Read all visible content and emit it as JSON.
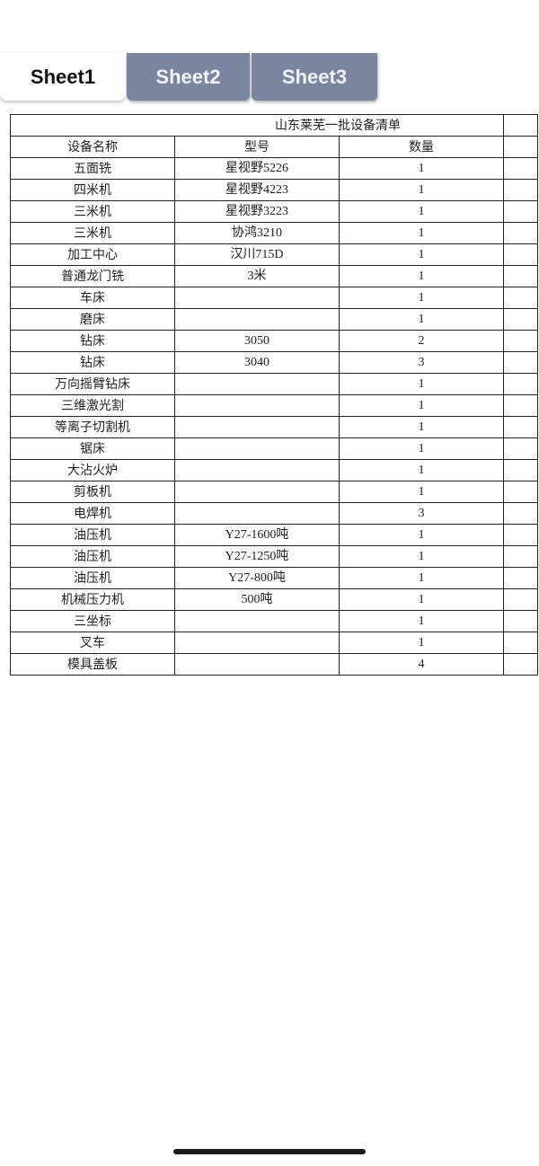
{
  "tabs": [
    {
      "label": "Sheet1",
      "active": true
    },
    {
      "label": "Sheet2",
      "active": false
    },
    {
      "label": "Sheet3",
      "active": false
    }
  ],
  "colors": {
    "inactive_tab": "#7a86a0",
    "active_tab": "#ffffff"
  },
  "table": {
    "title": "山东莱芜一批设备清单",
    "headers": [
      "设备名称",
      "型号",
      "数量",
      ""
    ],
    "rows": [
      [
        "五面铣",
        "星视野5226",
        "1"
      ],
      [
        "四米机",
        "星视野4223",
        "1"
      ],
      [
        "三米机",
        "星视野3223",
        "1"
      ],
      [
        "三米机",
        "协鸿3210",
        "1"
      ],
      [
        "加工中心",
        "汉川715D",
        "1"
      ],
      [
        "普通龙门铣",
        "3米",
        "1"
      ],
      [
        "车床",
        "",
        "1"
      ],
      [
        "磨床",
        "",
        "1"
      ],
      [
        "钻床",
        "3050",
        "2"
      ],
      [
        "钻床",
        "3040",
        "3"
      ],
      [
        "万向摇臂钻床",
        "",
        "1"
      ],
      [
        "三维激光割",
        "",
        "1"
      ],
      [
        "等离子切割机",
        "",
        "1"
      ],
      [
        "锯床",
        "",
        "1"
      ],
      [
        "大沾火炉",
        "",
        "1"
      ],
      [
        "剪板机",
        "",
        "1"
      ],
      [
        "电焊机",
        "",
        "3"
      ],
      [
        "油压机",
        "Y27-1600吨",
        "1"
      ],
      [
        "油压机",
        "Y27-1250吨",
        "1"
      ],
      [
        "油压机",
        "Y27-800吨",
        "1"
      ],
      [
        "机械压力机",
        "500吨",
        "1"
      ],
      [
        "三坐标",
        "",
        "1"
      ],
      [
        "叉车",
        "",
        "1"
      ],
      [
        "模具盖板",
        "",
        "4"
      ]
    ]
  }
}
